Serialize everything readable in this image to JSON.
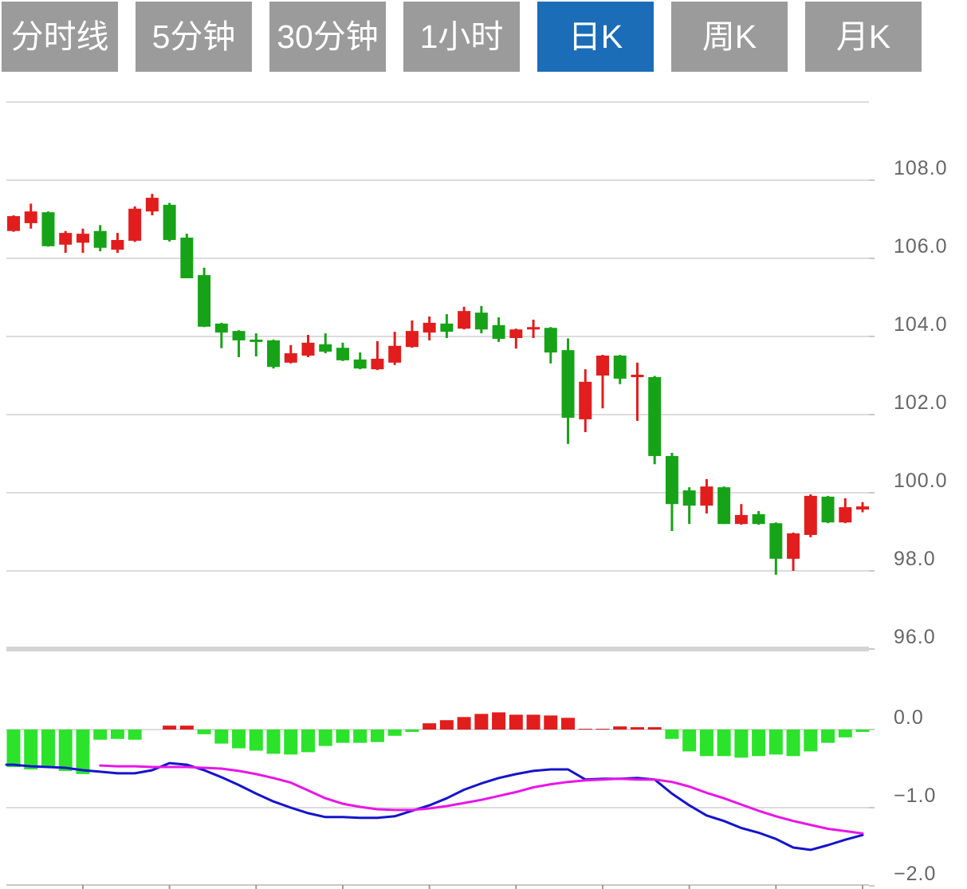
{
  "tabs": [
    {
      "label": "分时线",
      "active": false
    },
    {
      "label": "5分钟",
      "active": false
    },
    {
      "label": "30分钟",
      "active": false
    },
    {
      "label": "1小时",
      "active": false
    },
    {
      "label": "日K",
      "active": true
    },
    {
      "label": "周K",
      "active": false
    },
    {
      "label": "月K",
      "active": false
    }
  ],
  "colors": {
    "tab_bg": "#9b9b9b",
    "tab_active_bg": "#1c6db7",
    "tab_text": "#ffffff",
    "candle_up": "#e21d1d",
    "candle_down": "#17a317",
    "hist_up": "#e21d1d",
    "hist_down": "#2be32b",
    "dif_line": "#1414cc",
    "dea_line": "#e816e8",
    "grid": "#dcdcdc",
    "grid_thick": "#d4d4d4",
    "axis_line": "#c9c9c9",
    "tick": "#9a9a9a",
    "label_text": "#666666",
    "background": "#ffffff"
  },
  "chart_data": {
    "type": "candlestick",
    "title": "",
    "selected_timeframe": "日K",
    "grid": true,
    "legend": "none",
    "price_panel": {
      "ylim": [
        96.0,
        110.0
      ],
      "grid_values": [
        110.0,
        108.0,
        106.0,
        104.0,
        102.0,
        100.0,
        98.0
      ],
      "thick_grid_value": 96.0,
      "ylabels": [
        {
          "v": 108.0,
          "t": "108.0"
        },
        {
          "v": 106.0,
          "t": "106.0"
        },
        {
          "v": 104.0,
          "t": "104.0"
        },
        {
          "v": 102.0,
          "t": "102.0"
        },
        {
          "v": 100.0,
          "t": "100.0"
        },
        {
          "v": 98.0,
          "t": "98.0"
        },
        {
          "v": 96.0,
          "t": "96.0"
        }
      ],
      "candle_format": "[open, high, low, close]",
      "candles": [
        [
          106.7,
          107.1,
          106.68,
          107.08
        ],
        [
          106.9,
          107.4,
          106.76,
          107.2
        ],
        [
          107.18,
          107.2,
          106.3,
          106.31
        ],
        [
          106.35,
          106.7,
          106.14,
          106.65
        ],
        [
          106.4,
          106.76,
          106.14,
          106.63
        ],
        [
          106.7,
          106.85,
          106.18,
          106.27
        ],
        [
          106.22,
          106.65,
          106.14,
          106.47
        ],
        [
          106.45,
          107.33,
          106.42,
          107.27
        ],
        [
          107.2,
          107.65,
          107.1,
          107.55
        ],
        [
          107.37,
          107.42,
          106.43,
          106.47
        ],
        [
          106.53,
          106.63,
          105.49,
          105.49
        ],
        [
          105.57,
          105.76,
          104.24,
          104.25
        ],
        [
          104.33,
          104.35,
          103.7,
          104.1
        ],
        [
          104.14,
          104.16,
          103.47,
          103.9
        ],
        [
          103.92,
          104.08,
          103.49,
          103.86
        ],
        [
          103.9,
          103.92,
          103.18,
          103.22
        ],
        [
          103.33,
          103.78,
          103.31,
          103.57
        ],
        [
          103.51,
          104.04,
          103.47,
          103.84
        ],
        [
          103.8,
          104.08,
          103.57,
          103.61
        ],
        [
          103.71,
          103.84,
          103.37,
          103.39
        ],
        [
          103.41,
          103.59,
          103.16,
          103.18
        ],
        [
          103.16,
          103.88,
          103.14,
          103.43
        ],
        [
          103.33,
          104.12,
          103.27,
          103.76
        ],
        [
          103.73,
          104.41,
          103.71,
          104.14
        ],
        [
          104.1,
          104.51,
          103.9,
          104.35
        ],
        [
          104.33,
          104.57,
          103.96,
          104.12
        ],
        [
          104.2,
          104.76,
          104.18,
          104.65
        ],
        [
          104.61,
          104.78,
          104.08,
          104.18
        ],
        [
          104.29,
          104.49,
          103.86,
          103.94
        ],
        [
          103.96,
          104.2,
          103.69,
          104.18
        ],
        [
          104.18,
          104.43,
          103.96,
          104.24
        ],
        [
          104.22,
          104.24,
          103.31,
          103.59
        ],
        [
          103.65,
          103.95,
          101.25,
          101.92
        ],
        [
          101.88,
          103.16,
          101.55,
          102.84
        ],
        [
          103.0,
          103.53,
          102.16,
          103.51
        ],
        [
          103.51,
          103.53,
          102.78,
          102.92
        ],
        [
          102.96,
          103.33,
          101.84,
          103.02
        ],
        [
          102.96,
          102.99,
          100.73,
          100.94
        ],
        [
          100.94,
          101.02,
          99.02,
          99.71
        ],
        [
          100.06,
          100.14,
          99.2,
          99.67
        ],
        [
          99.67,
          100.35,
          99.47,
          100.16
        ],
        [
          100.14,
          100.16,
          99.2,
          99.2
        ],
        [
          99.2,
          99.71,
          99.18,
          99.43
        ],
        [
          99.45,
          99.53,
          99.18,
          99.2
        ],
        [
          99.22,
          99.24,
          97.9,
          98.31
        ],
        [
          98.31,
          98.98,
          98.0,
          98.96
        ],
        [
          98.92,
          99.96,
          98.86,
          99.92
        ],
        [
          99.9,
          99.92,
          99.22,
          99.24
        ],
        [
          99.24,
          99.86,
          99.22,
          99.63
        ],
        [
          99.57,
          99.76,
          99.5,
          99.65
        ]
      ]
    },
    "macd_panel": {
      "ylim": [
        -2.0,
        0.0
      ],
      "grid_values": [
        0.0,
        -1.0
      ],
      "axis_value": -2.0,
      "ylabels": [
        {
          "v": 0.0,
          "t": "0.0"
        },
        {
          "v": -1.0,
          "t": "−1.0"
        },
        {
          "v": -2.0,
          "t": "−2.0"
        }
      ],
      "x_tick_every": 5,
      "histogram": [
        -0.48,
        -0.51,
        -0.49,
        -0.53,
        -0.57,
        -0.13,
        -0.12,
        -0.13,
        0.0,
        0.05,
        0.05,
        -0.06,
        -0.18,
        -0.24,
        -0.27,
        -0.31,
        -0.32,
        -0.29,
        -0.21,
        -0.17,
        -0.17,
        -0.16,
        -0.08,
        -0.03,
        0.08,
        0.12,
        0.16,
        0.2,
        0.22,
        0.19,
        0.19,
        0.18,
        0.15,
        0.01,
        0.01,
        0.04,
        0.03,
        0.03,
        -0.12,
        -0.28,
        -0.34,
        -0.34,
        -0.36,
        -0.34,
        -0.32,
        -0.34,
        -0.28,
        -0.17,
        -0.1,
        -0.03
      ],
      "dif": [
        -0.45,
        -0.47,
        -0.48,
        -0.49,
        -0.52,
        -0.54,
        -0.56,
        -0.56,
        -0.52,
        -0.43,
        -0.45,
        -0.52,
        -0.61,
        -0.71,
        -0.82,
        -0.92,
        -1.0,
        -1.07,
        -1.12,
        -1.12,
        -1.13,
        -1.13,
        -1.11,
        -1.04,
        -0.97,
        -0.88,
        -0.77,
        -0.69,
        -0.62,
        -0.57,
        -0.53,
        -0.51,
        -0.51,
        -0.64,
        -0.63,
        -0.63,
        -0.62,
        -0.64,
        -0.82,
        -0.97,
        -1.1,
        -1.17,
        -1.26,
        -1.32,
        -1.4,
        -1.51,
        -1.54,
        -1.48,
        -1.41,
        -1.35
      ],
      "dea": [
        null,
        null,
        null,
        null,
        null,
        -0.46,
        -0.47,
        -0.47,
        -0.48,
        -0.48,
        -0.48,
        -0.49,
        -0.5,
        -0.53,
        -0.57,
        -0.62,
        -0.68,
        -0.78,
        -0.88,
        -0.95,
        -0.99,
        -1.02,
        -1.03,
        -1.03,
        -1.01,
        -0.98,
        -0.94,
        -0.9,
        -0.85,
        -0.8,
        -0.74,
        -0.7,
        -0.67,
        -0.65,
        -0.64,
        -0.63,
        -0.64,
        -0.64,
        -0.67,
        -0.73,
        -0.81,
        -0.88,
        -0.96,
        -1.04,
        -1.11,
        -1.17,
        -1.22,
        -1.27,
        -1.3,
        -1.33
      ]
    }
  }
}
